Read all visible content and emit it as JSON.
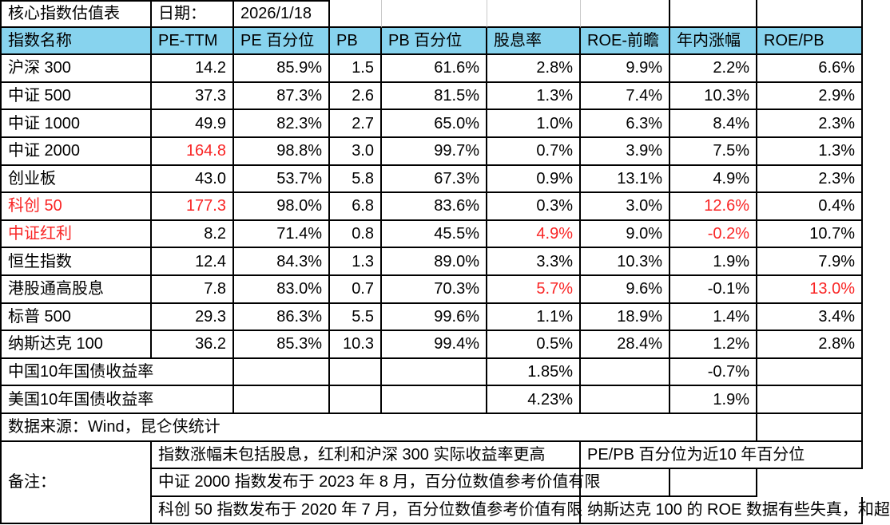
{
  "colors": {
    "header_bg": "#87d3ee",
    "red": "#f92525",
    "border": "#000000",
    "gridline_gray": "#c9c9c9"
  },
  "title_row": {
    "title": "核心指数估值表",
    "date_label": "日期：",
    "date_value": "2026/1/18"
  },
  "columns": [
    "指数名称",
    "PE-TTM",
    "PE 百分位",
    "PB",
    "PB 百分位",
    "股息率",
    "ROE-前瞻",
    "年内涨幅",
    "ROE/PB"
  ],
  "index_rows": [
    {
      "name": "沪深 300",
      "name_red": false,
      "values": [
        "14.2",
        "85.9%",
        "1.5",
        "61.6%",
        "2.8%",
        "9.9%",
        "2.2%",
        "6.6%"
      ],
      "red_values": []
    },
    {
      "name": "中证 500",
      "name_red": false,
      "values": [
        "37.3",
        "87.3%",
        "2.6",
        "81.5%",
        "1.3%",
        "7.4%",
        "10.3%",
        "2.9%"
      ],
      "red_values": []
    },
    {
      "name": "中证 1000",
      "name_red": false,
      "values": [
        "49.9",
        "82.3%",
        "2.7",
        "65.0%",
        "1.0%",
        "6.3%",
        "8.4%",
        "2.3%"
      ],
      "red_values": []
    },
    {
      "name": "中证 2000",
      "name_red": false,
      "values": [
        "164.8",
        "98.8%",
        "3.0",
        "99.7%",
        "0.7%",
        "3.9%",
        "7.5%",
        "1.3%"
      ],
      "red_values": [
        0
      ]
    },
    {
      "name": "创业板",
      "name_red": false,
      "values": [
        "43.0",
        "53.7%",
        "5.8",
        "67.3%",
        "0.9%",
        "13.1%",
        "4.9%",
        "2.3%"
      ],
      "red_values": []
    },
    {
      "name": "科创 50",
      "name_red": true,
      "values": [
        "177.3",
        "98.0%",
        "6.8",
        "83.6%",
        "0.3%",
        "3.0%",
        "12.6%",
        "0.4%"
      ],
      "red_values": [
        0,
        6
      ]
    },
    {
      "name": "中证红利",
      "name_red": true,
      "values": [
        "8.2",
        "71.4%",
        "0.8",
        "45.5%",
        "4.9%",
        "9.0%",
        "-0.2%",
        "10.7%"
      ],
      "red_values": [
        4,
        6
      ]
    },
    {
      "name": "恒生指数",
      "name_red": false,
      "values": [
        "12.4",
        "84.3%",
        "1.3",
        "89.0%",
        "3.3%",
        "10.3%",
        "1.9%",
        "7.9%"
      ],
      "red_values": []
    },
    {
      "name": "港股通高股息",
      "name_red": false,
      "values": [
        "7.8",
        "83.0%",
        "0.7",
        "70.3%",
        "5.7%",
        "9.6%",
        "-0.1%",
        "13.0%"
      ],
      "red_values": [
        4,
        7
      ]
    },
    {
      "name": "标普 500",
      "name_red": false,
      "values": [
        "29.3",
        "86.3%",
        "5.5",
        "99.6%",
        "1.1%",
        "18.9%",
        "1.4%",
        "3.4%"
      ],
      "red_values": []
    },
    {
      "name": "纳斯达克 100",
      "name_red": false,
      "values": [
        "36.2",
        "85.3%",
        "10.3",
        "99.4%",
        "0.5%",
        "28.4%",
        "1.2%",
        "2.8%"
      ],
      "red_values": []
    }
  ],
  "bond_rows": [
    {
      "name": "中国10年国债收益率",
      "yield": "1.85%",
      "ytd": "-0.7%"
    },
    {
      "name": "美国10年国债收益率",
      "yield": "4.23%",
      "ytd": "1.9%"
    }
  ],
  "source_row": {
    "text": "数据来源：Wind，昆仑侠统计"
  },
  "remarks": {
    "label": "备注：",
    "left": [
      "指数涨幅未包括股息，红利和沪深 300 实际收益率更高",
      "中证 2000 指数发布于 2023 年 8 月，百分位数值参考价值有限",
      "科创 50 指数发布于 2020 年 7 月，百分位数值参考价值有限"
    ],
    "right_row1": "PE/PB 百分位为近10 年百分位",
    "right_row3": "纳斯达克 100 的 ROE 数据有些失真，和超"
  }
}
